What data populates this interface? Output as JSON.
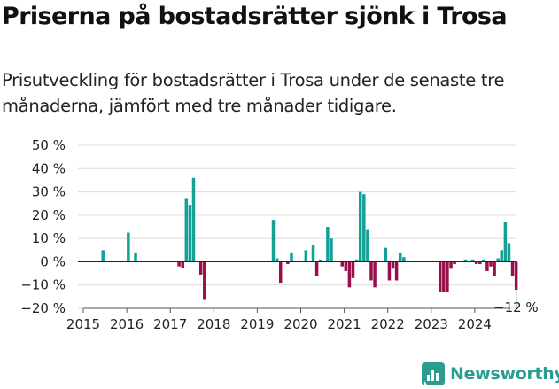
{
  "header": {
    "title": "Priserna på bostadsrätter sjönk i Trosa",
    "subtitle": "Prisutveckling för bostadsrätter i Trosa under de senaste tre månaderna, jämfört med tre månader tidigare."
  },
  "brand": {
    "name": "Newsworthy",
    "color": "#2a9d8f"
  },
  "chart_data": {
    "type": "bar",
    "ylim": [
      -20,
      50
    ],
    "y_ticks": [
      50,
      40,
      30,
      20,
      10,
      0,
      -10,
      -20
    ],
    "y_tick_labels": [
      "50 %",
      "40 %",
      "30 %",
      "20 %",
      "10 %",
      "0 %",
      "−10 %",
      "−20 %"
    ],
    "x_ticks": [
      "2015",
      "2016",
      "2017",
      "2018",
      "2019",
      "2020",
      "2021",
      "2022",
      "2023",
      "2024"
    ],
    "grid": true,
    "colors": {
      "positive": "#14a096",
      "negative": "#990f4b"
    },
    "annotation": "−12 %",
    "bars": [
      {
        "x": "2015-06",
        "value": 5
      },
      {
        "x": "2016-01",
        "value": 12.5
      },
      {
        "x": "2016-03",
        "value": 4
      },
      {
        "x": "2017-01",
        "value": 0.5
      },
      {
        "x": "2017-03",
        "value": -2
      },
      {
        "x": "2017-04",
        "value": -2.5
      },
      {
        "x": "2017-05",
        "value": 27
      },
      {
        "x": "2017-06",
        "value": 24.5
      },
      {
        "x": "2017-07",
        "value": 36
      },
      {
        "x": "2017-09",
        "value": -5.5
      },
      {
        "x": "2017-10",
        "value": -16
      },
      {
        "x": "2019-05",
        "value": 18
      },
      {
        "x": "2019-06",
        "value": 1.5
      },
      {
        "x": "2019-07",
        "value": -9
      },
      {
        "x": "2019-09",
        "value": -1
      },
      {
        "x": "2019-10",
        "value": 4
      },
      {
        "x": "2020-02",
        "value": 5
      },
      {
        "x": "2020-04",
        "value": 7
      },
      {
        "x": "2020-05",
        "value": -6
      },
      {
        "x": "2020-06",
        "value": 1
      },
      {
        "x": "2020-08",
        "value": 15
      },
      {
        "x": "2020-09",
        "value": 10
      },
      {
        "x": "2020-12",
        "value": -2
      },
      {
        "x": "2021-01",
        "value": -4
      },
      {
        "x": "2021-02",
        "value": -11
      },
      {
        "x": "2021-03",
        "value": -7
      },
      {
        "x": "2021-04",
        "value": 1
      },
      {
        "x": "2021-05",
        "value": 30
      },
      {
        "x": "2021-06",
        "value": 29
      },
      {
        "x": "2021-07",
        "value": 14
      },
      {
        "x": "2021-08",
        "value": -8
      },
      {
        "x": "2021-09",
        "value": -11
      },
      {
        "x": "2021-12",
        "value": 6
      },
      {
        "x": "2022-01",
        "value": -8
      },
      {
        "x": "2022-02",
        "value": -3
      },
      {
        "x": "2022-03",
        "value": -8
      },
      {
        "x": "2022-04",
        "value": 4
      },
      {
        "x": "2022-05",
        "value": 2
      },
      {
        "x": "2023-03",
        "value": -13
      },
      {
        "x": "2023-04",
        "value": -13
      },
      {
        "x": "2023-05",
        "value": -13
      },
      {
        "x": "2023-06",
        "value": -3
      },
      {
        "x": "2023-07",
        "value": -1
      },
      {
        "x": "2023-10",
        "value": 1
      },
      {
        "x": "2023-12",
        "value": 1
      },
      {
        "x": "2024-01",
        "value": -1
      },
      {
        "x": "2024-02",
        "value": -1
      },
      {
        "x": "2024-03",
        "value": 1
      },
      {
        "x": "2024-04",
        "value": -4
      },
      {
        "x": "2024-05",
        "value": -2
      },
      {
        "x": "2024-06",
        "value": -6
      },
      {
        "x": "2024-07",
        "value": 1.5
      },
      {
        "x": "2024-08",
        "value": 5
      },
      {
        "x": "2024-09",
        "value": 17
      },
      {
        "x": "2024-10",
        "value": 8
      },
      {
        "x": "2024-11",
        "value": -6
      },
      {
        "x": "2024-12",
        "value": -12
      }
    ]
  }
}
